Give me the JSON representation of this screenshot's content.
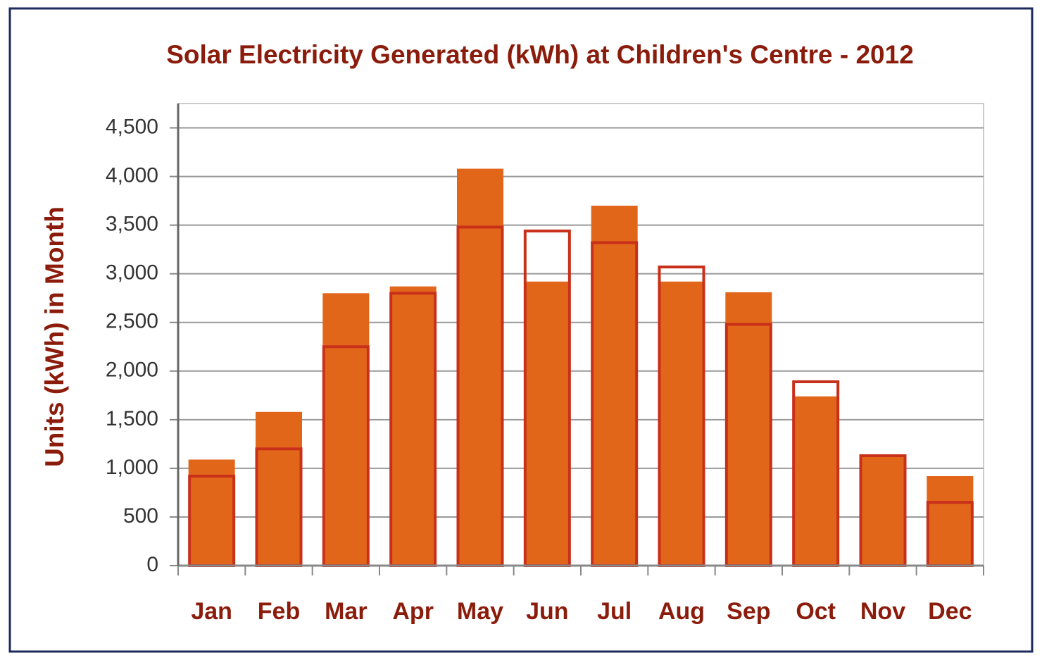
{
  "chart_data": {
    "type": "bar",
    "title": "Solar Electricity Generated (kWh) at Children's Centre - 2012",
    "y_label": "Units (kWh) in Month",
    "categories": [
      "Jan",
      "Feb",
      "Mar",
      "Apr",
      "May",
      "Jun",
      "Jul",
      "Aug",
      "Sep",
      "Oct",
      "Nov",
      "Dec"
    ],
    "series": [
      {
        "color": "#e2661a",
        "outline": false,
        "values": [
          1090,
          1580,
          2800,
          2870,
          4080,
          2920,
          3700,
          2920,
          2810,
          1740,
          1130,
          920
        ]
      },
      {
        "color": "#c8301a",
        "outline": true,
        "values": [
          920,
          1200,
          2250,
          2800,
          3480,
          3440,
          3320,
          3070,
          2480,
          1890,
          1130,
          650
        ]
      }
    ],
    "ylim": [
      0,
      4750
    ],
    "yticks": [
      0,
      500,
      {
        "value": 1000,
        "label": "1,000"
      },
      {
        "value": 1500,
        "label": "1,500"
      },
      {
        "value": 2000,
        "label": "2,000"
      },
      {
        "value": 2500,
        "label": "2,500"
      },
      {
        "value": 3000,
        "label": "3,000"
      },
      {
        "value": 3500,
        "label": "3,500"
      },
      {
        "value": 4000,
        "label": "4,000"
      },
      {
        "value": 4500,
        "label": "4,500"
      }
    ],
    "grid": true
  }
}
